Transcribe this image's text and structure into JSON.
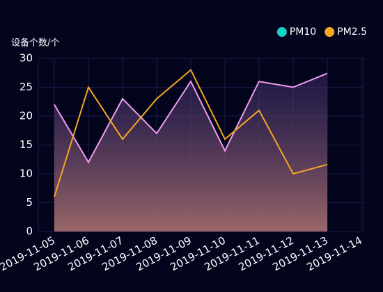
{
  "chart_data": {
    "type": "line",
    "y_axis_label": "设备个数/个",
    "categories": [
      "2019-11-05",
      "2019-11-06",
      "2019-11-07",
      "2019-11-08",
      "2019-11-09",
      "2019-11-10",
      "2019-11-11",
      "2019-11-12",
      "2019-11-13",
      "2019-11-14"
    ],
    "series": [
      {
        "name": "PM10",
        "color": "#14d1c5",
        "line_color": "#f39cf0",
        "area": true,
        "values": [
          22,
          12,
          23,
          17,
          26,
          14,
          26,
          25,
          27.4,
          null
        ]
      },
      {
        "name": "PM2.5",
        "color": "#f5a623",
        "line_color": "#f5a623",
        "values": [
          6,
          25,
          16,
          23,
          28,
          16,
          21,
          10,
          11.6,
          null
        ]
      }
    ],
    "ylim": [
      0,
      30
    ],
    "yticks": [
      0,
      5,
      10,
      15,
      20,
      25,
      30
    ],
    "grid": true,
    "legend": "top-right"
  }
}
